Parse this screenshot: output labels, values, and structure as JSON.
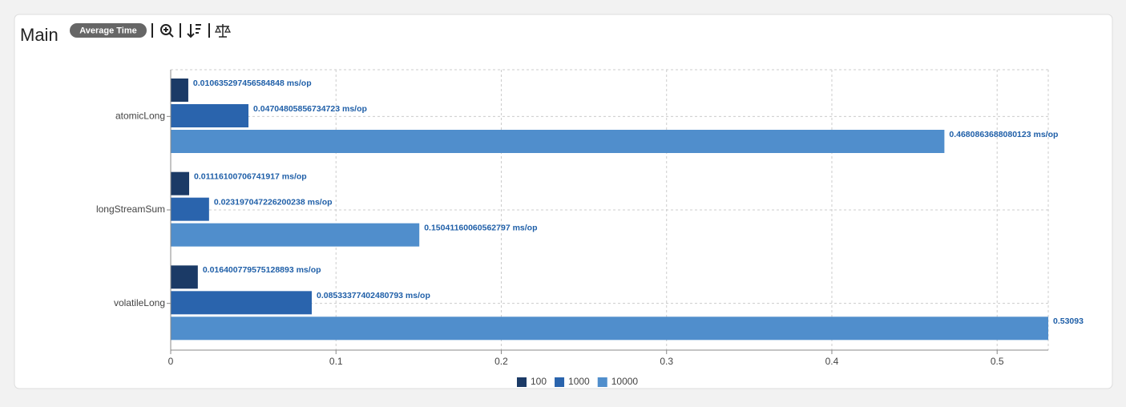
{
  "header": {
    "title": "Main",
    "badge": "Average Time"
  },
  "chart_data": {
    "type": "hbar",
    "categories": [
      "atomicLong",
      "longStreamSum",
      "volatileLong"
    ],
    "series": [
      {
        "name": "100",
        "color": "#1b3a66",
        "values": [
          0.010635297456584848,
          0.01116100706741917,
          0.016400779575128893
        ],
        "value_labels": [
          "0.010635297456584848 ms/op",
          "0.01116100706741917 ms/op",
          "0.016400779575128893 ms/op"
        ]
      },
      {
        "name": "1000",
        "color": "#2a64ad",
        "values": [
          0.04704805856734723,
          0.023197047226200238,
          0.08533377402480793
        ],
        "value_labels": [
          "0.04704805856734723 ms/op",
          "0.023197047226200238 ms/op",
          "0.08533377402480793 ms/op"
        ]
      },
      {
        "name": "10000",
        "color": "#508ecc",
        "values": [
          0.4680863688080123,
          0.15041160060562797,
          0.53093
        ],
        "value_labels": [
          "0.4680863688080123 ms/op",
          "0.15041160060562797 ms/op",
          "0.53093"
        ]
      }
    ],
    "xlim": [
      0,
      0.53093
    ],
    "xticks": [
      0,
      0.1,
      0.2,
      0.3,
      0.4,
      0.5
    ],
    "grid": true,
    "legend": "bottom"
  }
}
